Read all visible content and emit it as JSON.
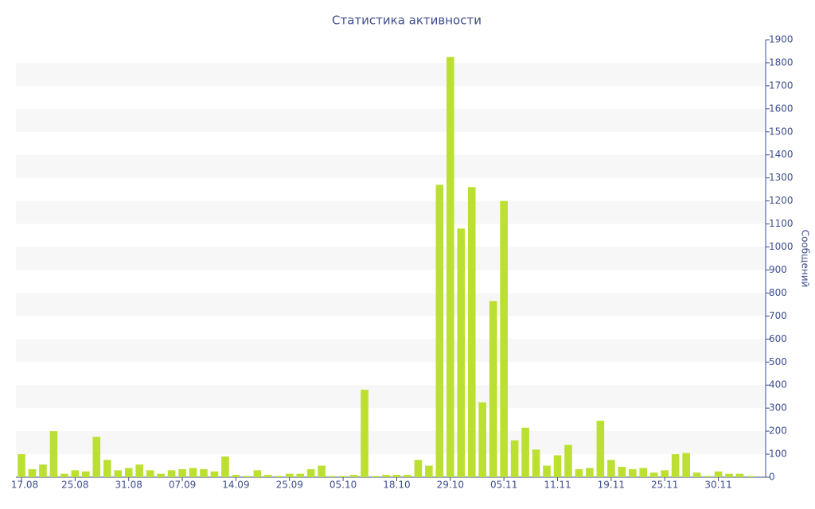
{
  "chart_data": {
    "type": "bar",
    "title": "Статистика активности",
    "y_label": "Сообщений",
    "categories": [
      "17.08",
      null,
      null,
      null,
      null,
      "25.08",
      null,
      null,
      null,
      null,
      "31.08",
      null,
      null,
      null,
      null,
      "07.09",
      null,
      null,
      null,
      null,
      "14.09",
      null,
      null,
      null,
      null,
      "25.09",
      null,
      null,
      null,
      null,
      "05.10",
      null,
      null,
      null,
      null,
      "18.10",
      null,
      null,
      null,
      null,
      "29.10",
      null,
      null,
      null,
      null,
      "05.11",
      null,
      null,
      null,
      null,
      "11.11",
      null,
      null,
      null,
      null,
      "19.11",
      null,
      null,
      null,
      null,
      "25.11",
      null,
      null,
      null,
      null,
      "30.11",
      null,
      null,
      null
    ],
    "values": [
      100,
      35,
      55,
      200,
      15,
      30,
      25,
      175,
      75,
      30,
      40,
      55,
      30,
      15,
      30,
      35,
      40,
      35,
      25,
      90,
      10,
      5,
      30,
      10,
      5,
      15,
      15,
      35,
      50,
      5,
      5,
      10,
      380,
      5,
      10,
      10,
      10,
      75,
      50,
      1270,
      1825,
      1080,
      1260,
      325,
      765,
      1200,
      160,
      215,
      120,
      50,
      95,
      140,
      35,
      40,
      245,
      75,
      45,
      35,
      40,
      20,
      30,
      100,
      105,
      20,
      5,
      25,
      15,
      15,
      5
    ],
    "color": "#bbe031",
    "ylim": [
      0,
      1900
    ],
    "yticks": [
      0,
      100,
      200,
      300,
      400,
      500,
      600,
      700,
      800,
      900,
      1000,
      1100,
      1200,
      1300,
      1400,
      1500,
      1600,
      1700,
      1800,
      1900
    ],
    "grid": true
  }
}
